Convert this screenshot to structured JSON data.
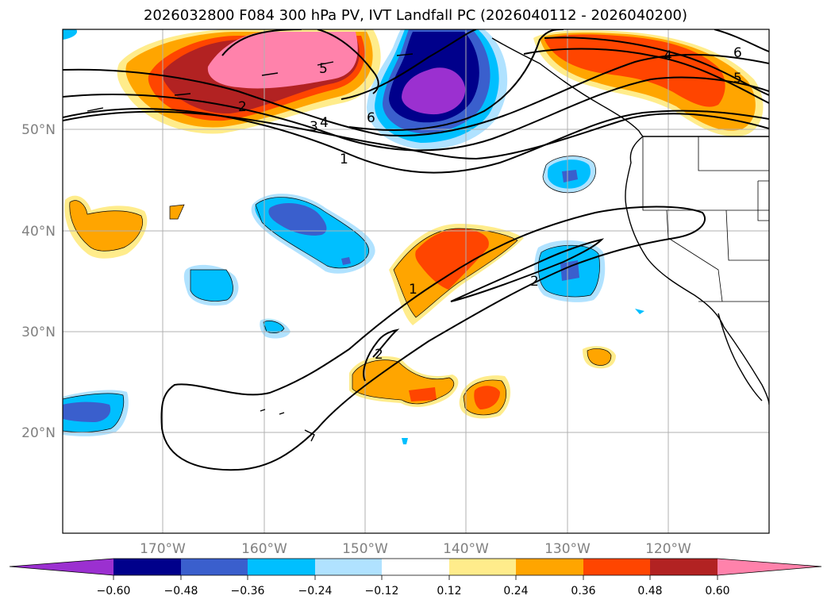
{
  "title": "2026032800 F084 300 hPa PV, IVT Landfall PC (2026040112 - 2026040200)",
  "map": {
    "projection": "lon-lat",
    "lon_range": [
      -180,
      -110
    ],
    "lat_range": [
      10,
      60
    ],
    "lon_ticks": [
      "170°W",
      "160°W",
      "150°W",
      "140°W",
      "130°W",
      "120°W"
    ],
    "lat_ticks": [
      "50°N",
      "40°N",
      "30°N",
      "20°N"
    ],
    "gridlines": true,
    "contour_labels": [
      "5",
      "2",
      "3",
      "4",
      "6",
      "1",
      "4",
      "6",
      "5",
      "1",
      "2",
      "2"
    ],
    "colors": {
      "purple": "#9b30d0",
      "navy": "#00008b",
      "blue": "#3a5fcd",
      "deepskyblue": "#00bfff",
      "lightblue": "#b0e2ff",
      "lightyellow": "#ffec8b",
      "orange": "#ffa500",
      "orangered": "#ff4500",
      "firebrick": "#b22222",
      "pink": "#ff82ab"
    }
  },
  "colorbar": {
    "ticks": [
      "−0.60",
      "−0.48",
      "−0.36",
      "−0.24",
      "−0.12",
      "0.12",
      "0.24",
      "0.36",
      "0.48",
      "0.60"
    ],
    "colors": [
      "#9b30d0",
      "#00008b",
      "#3a5fcd",
      "#00bfff",
      "#b0e2ff",
      "#ffffff",
      "#ffec8b",
      "#ffa500",
      "#ff4500",
      "#b22222",
      "#ff82ab"
    ]
  }
}
